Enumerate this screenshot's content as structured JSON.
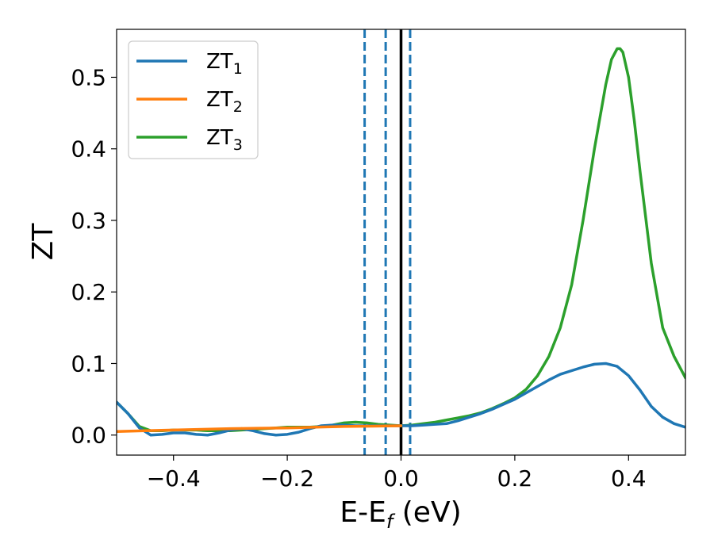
{
  "chart_data": {
    "type": "line",
    "xlabel": "E-E",
    "xlabel_sub": "f",
    "xlabel_unit": " (eV)",
    "ylabel": "ZT",
    "xlim": [
      -0.5,
      0.5
    ],
    "ylim": [
      -0.028,
      0.567
    ],
    "grid": false,
    "legend_placement": "top-left",
    "xticks": [
      -0.4,
      -0.2,
      0.0,
      0.2,
      0.4
    ],
    "xtick_labels": [
      "−0.4",
      "−0.2",
      "0.0",
      "0.2",
      "0.4"
    ],
    "yticks": [
      0.0,
      0.1,
      0.2,
      0.3,
      0.4,
      0.5
    ],
    "ytick_labels": [
      "0.0",
      "0.1",
      "0.2",
      "0.3",
      "0.4",
      "0.5"
    ],
    "series": [
      {
        "name": "ZT",
        "sub": "1",
        "color": "#1f77b4",
        "draw_order": 1,
        "x": [
          -0.5,
          -0.48,
          -0.46,
          -0.44,
          -0.42,
          -0.4,
          -0.38,
          -0.36,
          -0.34,
          -0.32,
          -0.3,
          -0.28,
          -0.26,
          -0.24,
          -0.22,
          -0.2,
          -0.18,
          -0.16,
          -0.14,
          -0.12,
          -0.1,
          -0.08,
          -0.06,
          -0.04,
          -0.02,
          0.0,
          0.02,
          0.04,
          0.06,
          0.08,
          0.1,
          0.12,
          0.14,
          0.16,
          0.18,
          0.2,
          0.22,
          0.24,
          0.26,
          0.28,
          0.3,
          0.32,
          0.34,
          0.36,
          0.38,
          0.4,
          0.42,
          0.44,
          0.46,
          0.48,
          0.5
        ],
        "y": [
          0.046,
          0.03,
          0.01,
          0.0,
          0.001,
          0.003,
          0.003,
          0.001,
          0.0,
          0.003,
          0.007,
          0.009,
          0.006,
          0.002,
          0.0,
          0.001,
          0.004,
          0.009,
          0.013,
          0.014,
          0.014,
          0.013,
          0.013,
          0.013,
          0.013,
          0.013,
          0.013,
          0.014,
          0.015,
          0.016,
          0.02,
          0.025,
          0.03,
          0.036,
          0.043,
          0.05,
          0.059,
          0.068,
          0.077,
          0.085,
          0.09,
          0.095,
          0.099,
          0.1,
          0.096,
          0.083,
          0.063,
          0.04,
          0.025,
          0.016,
          0.011
        ]
      },
      {
        "name": "ZT",
        "sub": "2",
        "color": "#ff7f0e",
        "draw_order": 2,
        "x": [
          -0.5,
          -0.45,
          -0.4,
          -0.35,
          -0.3,
          -0.25,
          -0.2,
          -0.15,
          -0.1,
          -0.05,
          0.0
        ],
        "y": [
          0.005,
          0.006,
          0.007,
          0.008,
          0.009,
          0.0095,
          0.01,
          0.011,
          0.012,
          0.0125,
          0.013
        ]
      },
      {
        "name": "ZT",
        "sub": "3",
        "color": "#2ca02c",
        "draw_order": 0,
        "x": [
          -0.5,
          -0.48,
          -0.46,
          -0.44,
          -0.42,
          -0.4,
          -0.38,
          -0.36,
          -0.34,
          -0.32,
          -0.3,
          -0.28,
          -0.26,
          -0.24,
          -0.22,
          -0.2,
          -0.18,
          -0.16,
          -0.14,
          -0.12,
          -0.1,
          -0.08,
          -0.06,
          -0.04,
          -0.02,
          0.0,
          0.02,
          0.04,
          0.06,
          0.08,
          0.1,
          0.12,
          0.14,
          0.16,
          0.18,
          0.2,
          0.22,
          0.24,
          0.26,
          0.28,
          0.3,
          0.32,
          0.34,
          0.36,
          0.37,
          0.38,
          0.385,
          0.39,
          0.4,
          0.41,
          0.42,
          0.44,
          0.46,
          0.48,
          0.5
        ],
        "y": [
          0.046,
          0.03,
          0.012,
          0.006,
          0.006,
          0.007,
          0.007,
          0.007,
          0.006,
          0.006,
          0.006,
          0.007,
          0.008,
          0.009,
          0.01,
          0.011,
          0.011,
          0.011,
          0.012,
          0.014,
          0.017,
          0.018,
          0.017,
          0.015,
          0.014,
          0.013,
          0.014,
          0.016,
          0.018,
          0.021,
          0.024,
          0.027,
          0.031,
          0.037,
          0.044,
          0.052,
          0.064,
          0.083,
          0.11,
          0.15,
          0.21,
          0.3,
          0.4,
          0.49,
          0.525,
          0.54,
          0.54,
          0.535,
          0.5,
          0.44,
          0.37,
          0.24,
          0.15,
          0.11,
          0.08
        ]
      }
    ],
    "vlines": [
      {
        "x": -0.064,
        "color": "#1f77b4",
        "style": "dashed"
      },
      {
        "x": -0.027,
        "color": "#1f77b4",
        "style": "dashed"
      },
      {
        "x": 0.016,
        "color": "#1f77b4",
        "style": "dashed"
      },
      {
        "x": 0.0,
        "color": "#000000",
        "style": "solid"
      }
    ]
  }
}
